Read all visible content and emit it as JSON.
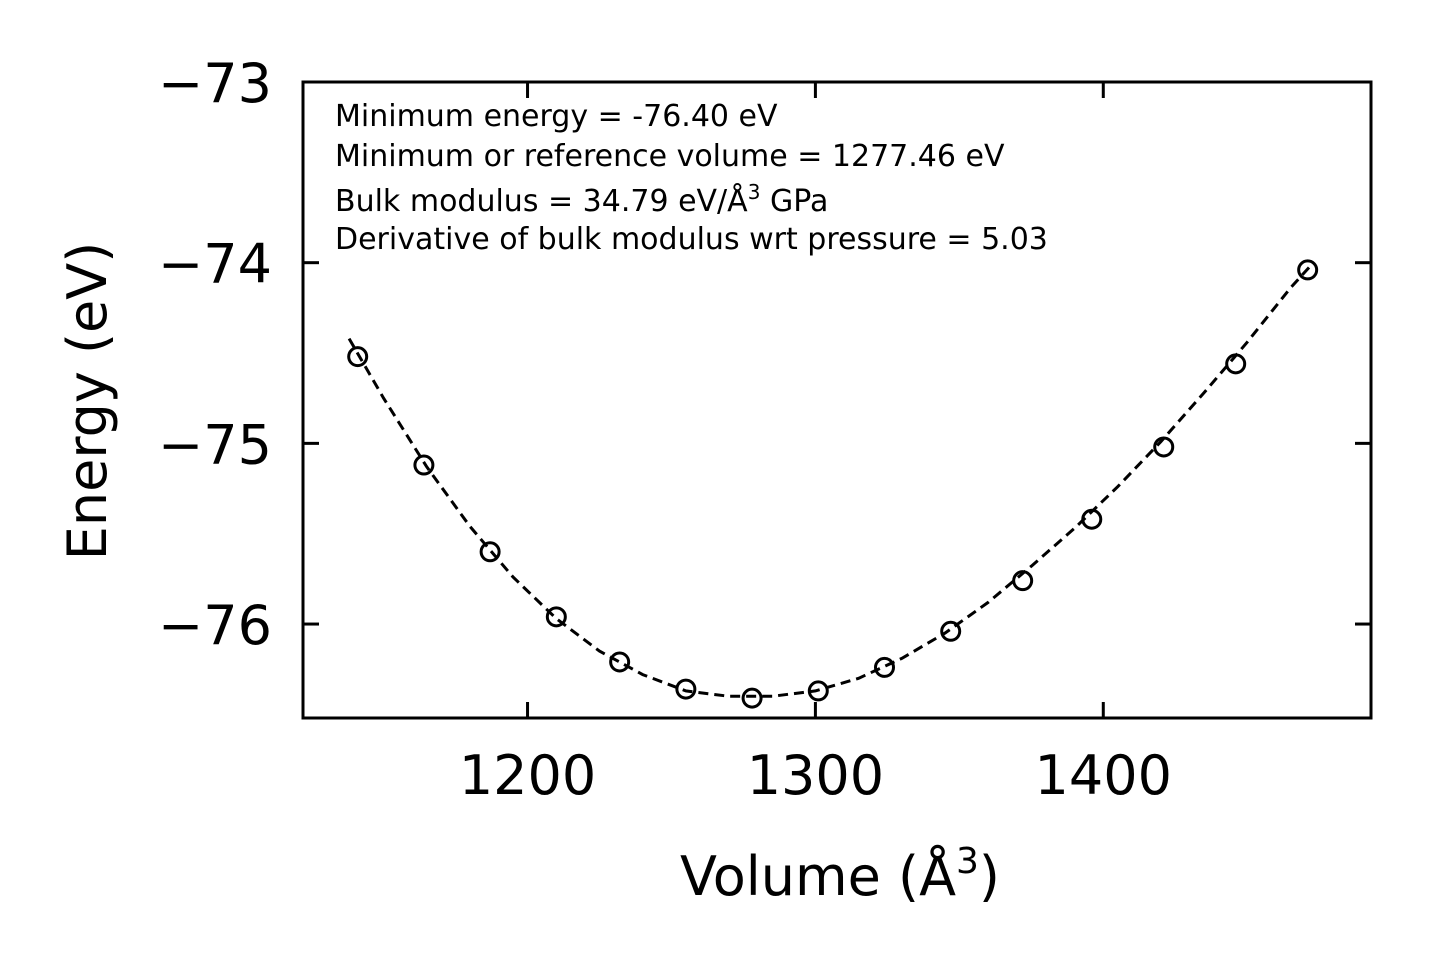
{
  "chart_data": {
    "type": "scatter",
    "xlabel": "Volume (Å",
    "xlabel_sup": "3",
    "xlabel_end": ")",
    "ylabel": "Energy (eV)",
    "xlim": [
      1122,
      1493
    ],
    "ylim": [
      -76.52,
      -73.0
    ],
    "xticks": [
      1200,
      1300,
      1400
    ],
    "xtick_labels": [
      "1200",
      "1300",
      "1400"
    ],
    "yticks": [
      -73,
      -74,
      -75,
      -76
    ],
    "ytick_labels": [
      "−73",
      "−74",
      "−75",
      "−76"
    ],
    "annotations": {
      "min_energy": "Minimum energy = -76.40 eV",
      "min_volume": "Minimum or reference volume = 1277.46 eV",
      "bulk_modulus_prefix": "Bulk modulus = 34.79 eV/Å",
      "bulk_modulus_sup": "3",
      "bulk_modulus_suffix": " GPa",
      "derivative": "Derivative of bulk modulus wrt pressure = 5.03"
    },
    "series": [
      {
        "name": "data",
        "style": "open-circle",
        "color": "#000000",
        "x": [
          1141,
          1164,
          1187,
          1210,
          1232,
          1255,
          1278,
          1301,
          1324,
          1347,
          1372,
          1396,
          1421,
          1446,
          1471
        ],
        "y": [
          -74.52,
          -75.12,
          -75.6,
          -75.96,
          -76.21,
          -76.36,
          -76.41,
          -76.37,
          -76.24,
          -76.04,
          -75.76,
          -75.42,
          -75.02,
          -74.56,
          -74.04
        ]
      },
      {
        "name": "fit",
        "style": "dashed-line",
        "color": "#000000",
        "x": [
          1138,
          1150,
          1165,
          1180,
          1195,
          1210,
          1225,
          1240,
          1255,
          1270,
          1285,
          1300,
          1315,
          1330,
          1345,
          1360,
          1375,
          1390,
          1405,
          1420,
          1435,
          1450,
          1465,
          1473
        ],
        "y": [
          -74.42,
          -74.75,
          -75.13,
          -75.46,
          -75.74,
          -75.97,
          -76.15,
          -76.28,
          -76.37,
          -76.4,
          -76.4,
          -76.37,
          -76.3,
          -76.19,
          -76.05,
          -75.88,
          -75.68,
          -75.47,
          -75.24,
          -74.99,
          -74.72,
          -74.44,
          -74.14,
          -74.0
        ]
      }
    ]
  }
}
